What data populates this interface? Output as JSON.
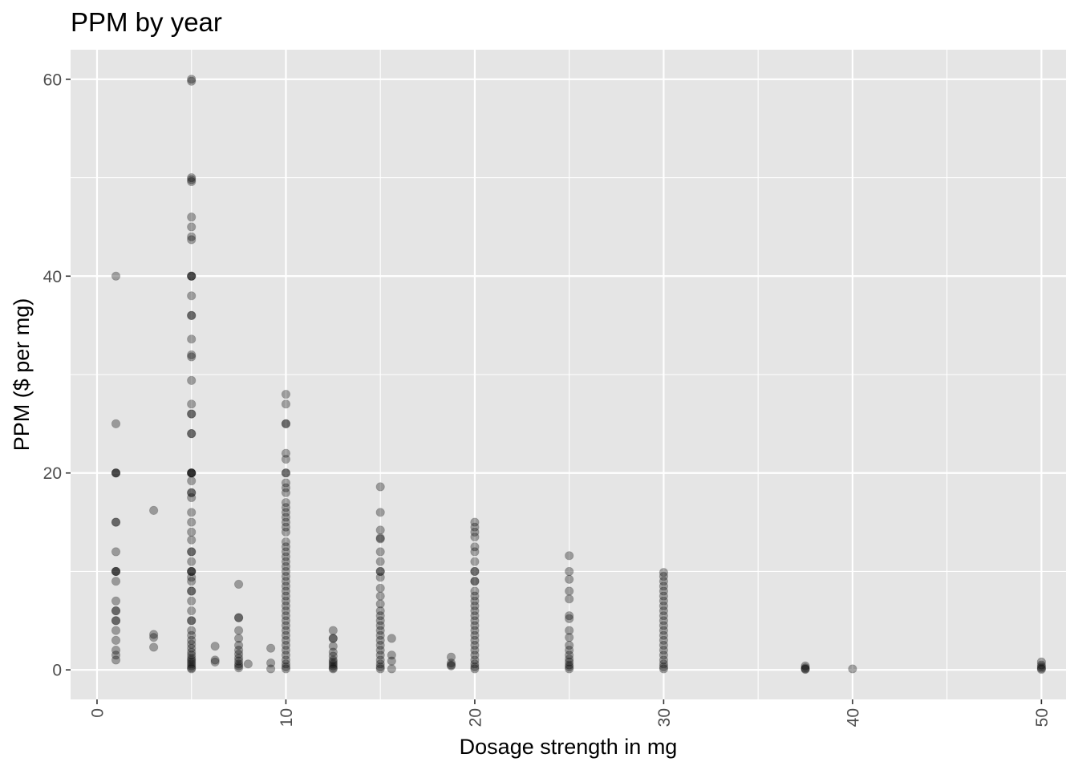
{
  "chart_data": {
    "type": "scatter",
    "title": "PPM by year",
    "xlabel": "Dosage strength in mg",
    "ylabel": "PPM ($ per mg)",
    "xlim": [
      -1.4,
      51.3
    ],
    "ylim": [
      -3,
      63
    ],
    "x_ticks": [
      0,
      10,
      20,
      30,
      40,
      50
    ],
    "y_ticks": [
      0,
      20,
      40,
      60
    ],
    "x_tick_labels": [
      "0",
      "10",
      "20",
      "30",
      "40",
      "50"
    ],
    "y_tick_labels": [
      "0",
      "20",
      "40",
      "60"
    ],
    "x_minor_ticks": [
      5,
      15,
      25,
      35,
      45
    ],
    "y_minor_ticks": [
      10,
      30,
      50
    ],
    "x_tick_rotation": -90,
    "grid": true,
    "legend": "none",
    "colors": {
      "panel": "#e5e5e5",
      "grid": "#ffffff",
      "point": "#000000",
      "text": "#000000",
      "tick_text": "#4d4d4d",
      "tick": "#333333"
    },
    "point_alpha": 0.33,
    "series": [
      {
        "points": [
          [
            1,
            40
          ],
          [
            1,
            25
          ],
          [
            1,
            20
          ],
          [
            1,
            20
          ],
          [
            1,
            20
          ],
          [
            1,
            15
          ],
          [
            1,
            15
          ],
          [
            1,
            12
          ],
          [
            1,
            10
          ],
          [
            1,
            10
          ],
          [
            1,
            10
          ],
          [
            1,
            9
          ],
          [
            1,
            7
          ],
          [
            1,
            6
          ],
          [
            1,
            6
          ],
          [
            1,
            5
          ],
          [
            1,
            5
          ],
          [
            1,
            4
          ],
          [
            1,
            3
          ],
          [
            1,
            2
          ],
          [
            1,
            1.5
          ],
          [
            1,
            1
          ],
          [
            3,
            16.2
          ],
          [
            3,
            3.6
          ],
          [
            3,
            3.3
          ],
          [
            3,
            2.3
          ],
          [
            5,
            60
          ],
          [
            5,
            59.8
          ],
          [
            5,
            50
          ],
          [
            5,
            49.8
          ],
          [
            5,
            49.6
          ],
          [
            5,
            46
          ],
          [
            5,
            45
          ],
          [
            5,
            44
          ],
          [
            5,
            43.7
          ],
          [
            5,
            40
          ],
          [
            5,
            40
          ],
          [
            5,
            40
          ],
          [
            5,
            38
          ],
          [
            5,
            36
          ],
          [
            5,
            36
          ],
          [
            5,
            33.6
          ],
          [
            5,
            32
          ],
          [
            5,
            31.8
          ],
          [
            5,
            29.4
          ],
          [
            5,
            27
          ],
          [
            5,
            26
          ],
          [
            5,
            26
          ],
          [
            5,
            24
          ],
          [
            5,
            24
          ],
          [
            5,
            20
          ],
          [
            5,
            20
          ],
          [
            5,
            20
          ],
          [
            5,
            20
          ],
          [
            5,
            19.2
          ],
          [
            5,
            18
          ],
          [
            5,
            18
          ],
          [
            5,
            17.5
          ],
          [
            5,
            16
          ],
          [
            5,
            15
          ],
          [
            5,
            14
          ],
          [
            5,
            13.2
          ],
          [
            5,
            12
          ],
          [
            5,
            12
          ],
          [
            5,
            11
          ],
          [
            5,
            10
          ],
          [
            5,
            10
          ],
          [
            5,
            10
          ],
          [
            5,
            9.4
          ],
          [
            5,
            9
          ],
          [
            5,
            8
          ],
          [
            5,
            8
          ],
          [
            5,
            7
          ],
          [
            5,
            6
          ],
          [
            5,
            5
          ],
          [
            5,
            5
          ],
          [
            5,
            4
          ],
          [
            5,
            3.5
          ],
          [
            5,
            3
          ],
          [
            5,
            2.6
          ],
          [
            5,
            2.2
          ],
          [
            5,
            1.8
          ],
          [
            5,
            1.5
          ],
          [
            5,
            1.2
          ],
          [
            5,
            1
          ],
          [
            5,
            0.8
          ],
          [
            5,
            0.6
          ],
          [
            5,
            0.4
          ],
          [
            5,
            0.2
          ],
          [
            5,
            0.1
          ],
          [
            6.25,
            2.4
          ],
          [
            6.25,
            1
          ],
          [
            6.25,
            0.8
          ],
          [
            7.5,
            8.7
          ],
          [
            7.5,
            5.3
          ],
          [
            7.5,
            5.3
          ],
          [
            7.5,
            4
          ],
          [
            7.5,
            3.2
          ],
          [
            7.5,
            2.5
          ],
          [
            7.5,
            2
          ],
          [
            7.5,
            1.6
          ],
          [
            7.5,
            1.2
          ],
          [
            7.5,
            0.9
          ],
          [
            7.5,
            0.6
          ],
          [
            7.5,
            0.4
          ],
          [
            7.5,
            0.2
          ],
          [
            8,
            0.6
          ],
          [
            9.2,
            2.2
          ],
          [
            9.2,
            0.7
          ],
          [
            9.2,
            0.1
          ],
          [
            10,
            28
          ],
          [
            10,
            27
          ],
          [
            10,
            25
          ],
          [
            10,
            25
          ],
          [
            10,
            22
          ],
          [
            10,
            21.4
          ],
          [
            10,
            20
          ],
          [
            10,
            20
          ],
          [
            10,
            19
          ],
          [
            10,
            18.5
          ],
          [
            10,
            18
          ],
          [
            10,
            17
          ],
          [
            10,
            16.5
          ],
          [
            10,
            16
          ],
          [
            10,
            15.5
          ],
          [
            10,
            15
          ],
          [
            10,
            14.5
          ],
          [
            10,
            14
          ],
          [
            10,
            13
          ],
          [
            10,
            12.5
          ],
          [
            10,
            12
          ],
          [
            10,
            11.5
          ],
          [
            10,
            11
          ],
          [
            10,
            10.5
          ],
          [
            10,
            10
          ],
          [
            10,
            9.5
          ],
          [
            10,
            9
          ],
          [
            10,
            8.5
          ],
          [
            10,
            8
          ],
          [
            10,
            7.5
          ],
          [
            10,
            7
          ],
          [
            10,
            6.5
          ],
          [
            10,
            6
          ],
          [
            10,
            5.5
          ],
          [
            10,
            5
          ],
          [
            10,
            4.5
          ],
          [
            10,
            4
          ],
          [
            10,
            3.5
          ],
          [
            10,
            3
          ],
          [
            10,
            2.5
          ],
          [
            10,
            2
          ],
          [
            10,
            1.5
          ],
          [
            10,
            1
          ],
          [
            10,
            0.6
          ],
          [
            10,
            0.3
          ],
          [
            10,
            0.1
          ],
          [
            12.5,
            4
          ],
          [
            12.5,
            3.2
          ],
          [
            12.5,
            3.2
          ],
          [
            12.5,
            2.4
          ],
          [
            12.5,
            1.8
          ],
          [
            12.5,
            1.4
          ],
          [
            12.5,
            1
          ],
          [
            12.5,
            0.8
          ],
          [
            12.5,
            0.6
          ],
          [
            12.5,
            0.4
          ],
          [
            12.5,
            0.2
          ],
          [
            12.5,
            0.1
          ],
          [
            15,
            18.6
          ],
          [
            15,
            16
          ],
          [
            15,
            14.2
          ],
          [
            15,
            13.4
          ],
          [
            15,
            13.3
          ],
          [
            15,
            12
          ],
          [
            15,
            11
          ],
          [
            15,
            10
          ],
          [
            15,
            10
          ],
          [
            15,
            9.4
          ],
          [
            15,
            8.3
          ],
          [
            15,
            7.5
          ],
          [
            15,
            6.7
          ],
          [
            15,
            6
          ],
          [
            15,
            5.5
          ],
          [
            15,
            5
          ],
          [
            15,
            4.5
          ],
          [
            15,
            4
          ],
          [
            15,
            3.5
          ],
          [
            15,
            3
          ],
          [
            15,
            2.5
          ],
          [
            15,
            2
          ],
          [
            15,
            1.5
          ],
          [
            15,
            1
          ],
          [
            15,
            0.6
          ],
          [
            15,
            0.3
          ],
          [
            15,
            0.1
          ],
          [
            15.6,
            3.2
          ],
          [
            15.6,
            1.5
          ],
          [
            15.6,
            0.9
          ],
          [
            15.6,
            0.1
          ],
          [
            18.75,
            1.3
          ],
          [
            18.75,
            0.7
          ],
          [
            18.75,
            0.5
          ],
          [
            18.75,
            0.4
          ],
          [
            20,
            15
          ],
          [
            20,
            14.5
          ],
          [
            20,
            14
          ],
          [
            20,
            13.5
          ],
          [
            20,
            12.5
          ],
          [
            20,
            12
          ],
          [
            20,
            11
          ],
          [
            20,
            10
          ],
          [
            20,
            10
          ],
          [
            20,
            9
          ],
          [
            20,
            9
          ],
          [
            20,
            8
          ],
          [
            20,
            7.5
          ],
          [
            20,
            7
          ],
          [
            20,
            6.5
          ],
          [
            20,
            6
          ],
          [
            20,
            5.5
          ],
          [
            20,
            5
          ],
          [
            20,
            4.5
          ],
          [
            20,
            4
          ],
          [
            20,
            3.5
          ],
          [
            20,
            3
          ],
          [
            20,
            2.5
          ],
          [
            20,
            2
          ],
          [
            20,
            1.5
          ],
          [
            20,
            1
          ],
          [
            20,
            0.6
          ],
          [
            20,
            0.3
          ],
          [
            20,
            0.1
          ],
          [
            25,
            11.6
          ],
          [
            25,
            10
          ],
          [
            25,
            9.2
          ],
          [
            25,
            8
          ],
          [
            25,
            7.2
          ],
          [
            25,
            5.5
          ],
          [
            25,
            5.2
          ],
          [
            25,
            4
          ],
          [
            25,
            3.3
          ],
          [
            25,
            2.5
          ],
          [
            25,
            2
          ],
          [
            25,
            1.5
          ],
          [
            25,
            1.1
          ],
          [
            25,
            0.8
          ],
          [
            25,
            0.5
          ],
          [
            25,
            0.3
          ],
          [
            25,
            0.1
          ],
          [
            30,
            9.9
          ],
          [
            30,
            9.5
          ],
          [
            30,
            9
          ],
          [
            30,
            8.5
          ],
          [
            30,
            8
          ],
          [
            30,
            7.5
          ],
          [
            30,
            7
          ],
          [
            30,
            6.5
          ],
          [
            30,
            6
          ],
          [
            30,
            5.5
          ],
          [
            30,
            5
          ],
          [
            30,
            4.5
          ],
          [
            30,
            4
          ],
          [
            30,
            3.5
          ],
          [
            30,
            3
          ],
          [
            30,
            2.5
          ],
          [
            30,
            2
          ],
          [
            30,
            1.5
          ],
          [
            30,
            1
          ],
          [
            30,
            0.6
          ],
          [
            30,
            0.3
          ],
          [
            30,
            0.1
          ],
          [
            37.5,
            0.4
          ],
          [
            37.5,
            0.2
          ],
          [
            37.5,
            0.1
          ],
          [
            37.5,
            0.05
          ],
          [
            40,
            0.1
          ],
          [
            50,
            0.8
          ],
          [
            50,
            0.5
          ],
          [
            50,
            0.3
          ],
          [
            50,
            0.15
          ],
          [
            50,
            0.05
          ]
        ]
      }
    ]
  }
}
